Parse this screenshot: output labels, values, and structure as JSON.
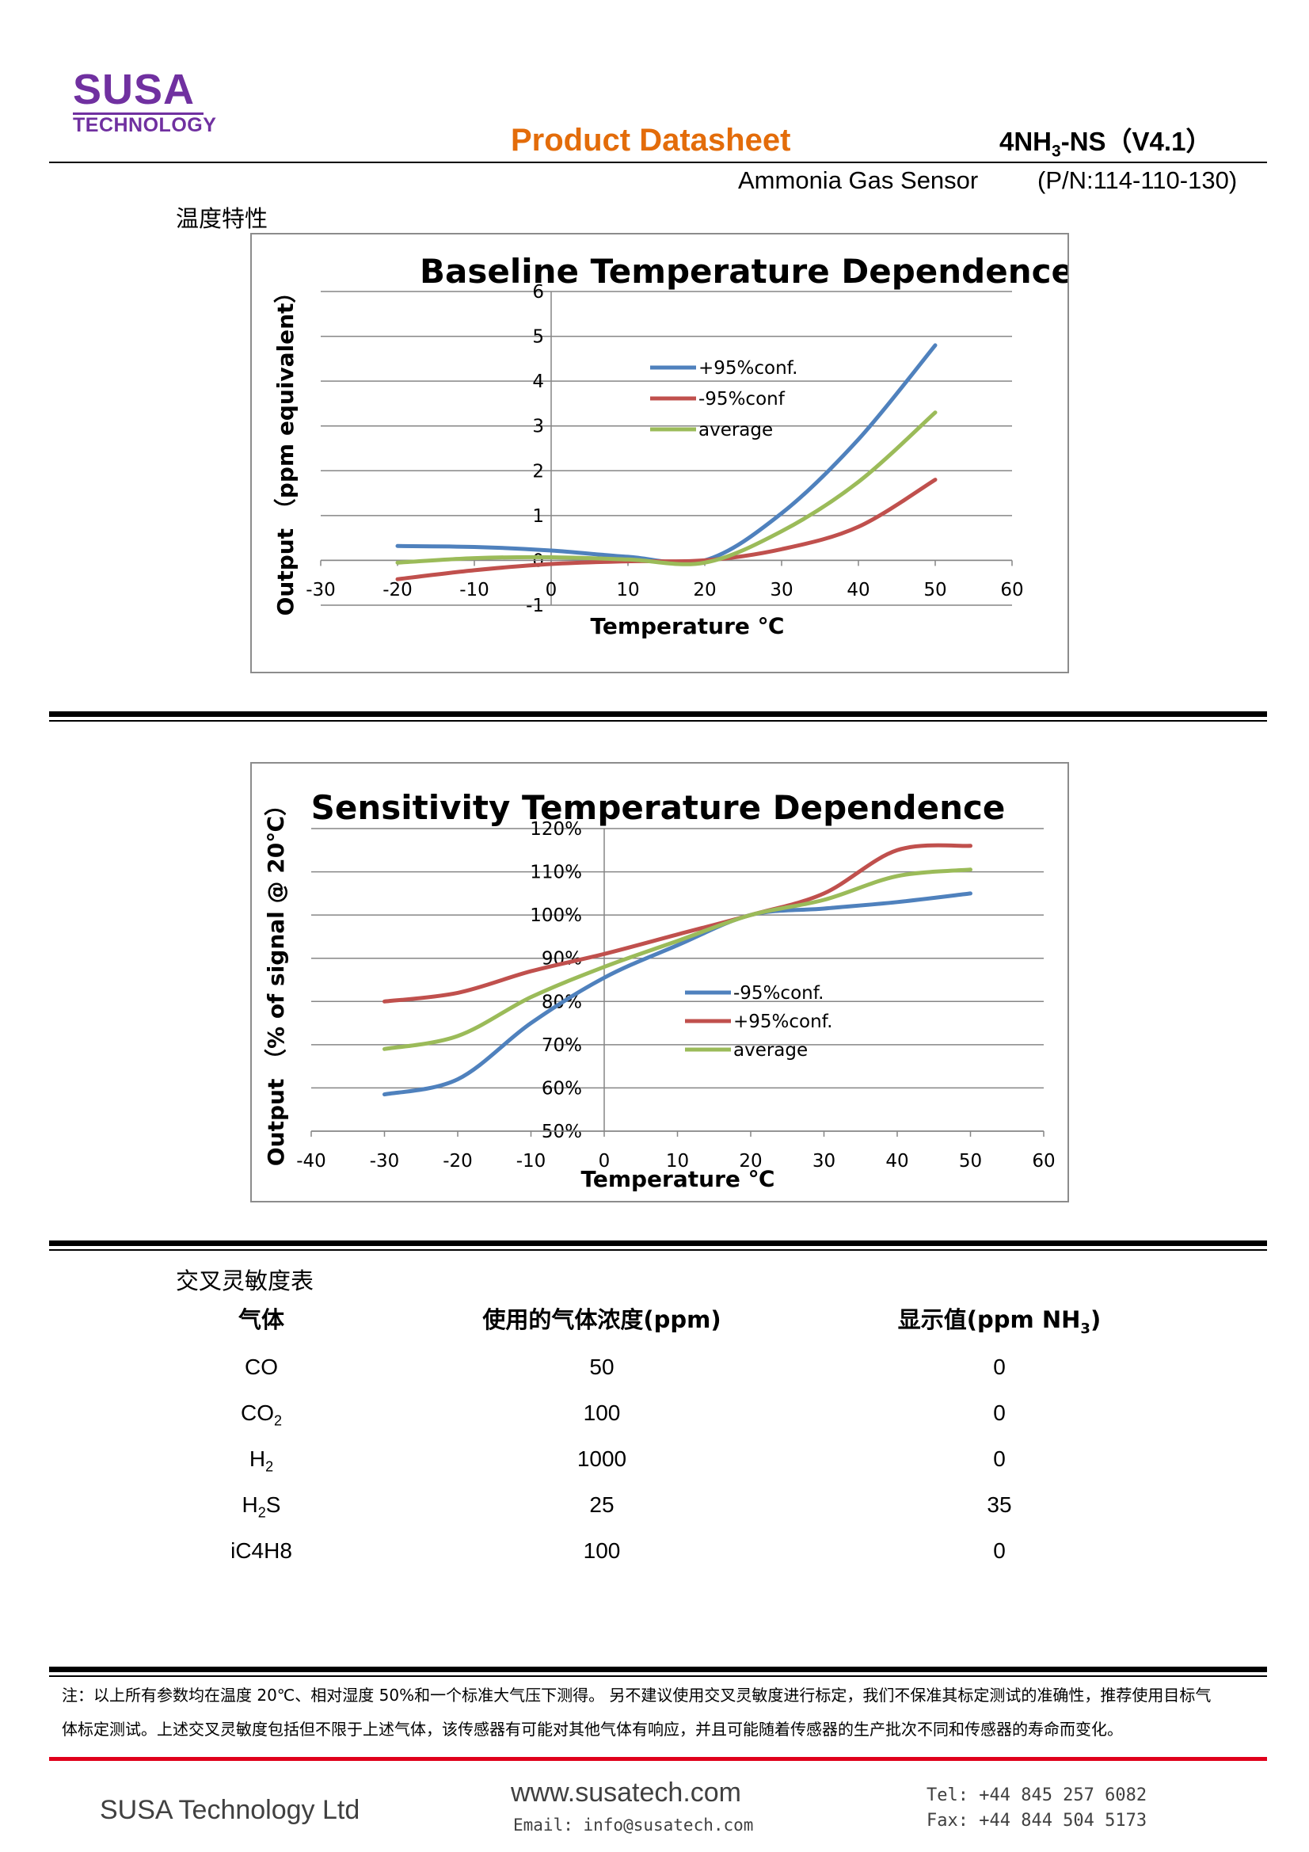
{
  "header": {
    "logo_main": "SUSA",
    "logo_sub": "TECHNOLOGY",
    "doc_title": "Product Datasheet",
    "part_name_pre": "4NH",
    "part_name_sub": "3",
    "part_name_post": "-NS（V4.1）",
    "sensor_type": "Ammonia Gas Sensor",
    "part_number": "(P/N:114-110-130)",
    "brand_color": "#7030a0",
    "title_color": "#e36c0a"
  },
  "temperature_section": {
    "heading": "温度特性"
  },
  "chart_data": [
    {
      "type": "line",
      "title": "Baseline Temperature Dependence",
      "xlabel": "Temperature ℃",
      "ylabel": "Output （ppm equivalent）",
      "xlim": [
        -30,
        60
      ],
      "ylim": [
        -1,
        6
      ],
      "xticks": [
        "-30",
        "-20",
        "-10",
        "0",
        "10",
        "20",
        "30",
        "40",
        "50",
        "60"
      ],
      "yticks": [
        "-1",
        "0",
        "1",
        "2",
        "3",
        "4",
        "5",
        "6"
      ],
      "grid": true,
      "legend": "center-right",
      "x": [
        -20,
        -10,
        0,
        10,
        20,
        30,
        40,
        50
      ],
      "series": [
        {
          "name": "+95%conf.",
          "color": "#4f81bd",
          "values": [
            0.32,
            0.3,
            0.22,
            0.08,
            0.0,
            1.05,
            2.7,
            4.8
          ]
        },
        {
          "name": "-95%conf",
          "color": "#c0504d",
          "values": [
            -0.42,
            -0.22,
            -0.08,
            -0.02,
            0.0,
            0.25,
            0.75,
            1.8
          ]
        },
        {
          "name": "average",
          "color": "#9bbb59",
          "values": [
            -0.05,
            0.05,
            0.07,
            0.02,
            -0.05,
            0.65,
            1.75,
            3.3
          ]
        }
      ]
    },
    {
      "type": "line",
      "title": "Sensitivity Temperature Dependence",
      "xlabel": "Temperature ℃",
      "ylabel": "Output （% of signal @ 20℃）",
      "xlim": [
        -40,
        60
      ],
      "ylim": [
        50,
        120
      ],
      "xticks": [
        "-40",
        "-30",
        "-20",
        "-10",
        "0",
        "10",
        "20",
        "30",
        "40",
        "50",
        "60"
      ],
      "yticks": [
        "50%",
        "60%",
        "70%",
        "80%",
        "90%",
        "100%",
        "110%",
        "120%"
      ],
      "grid": true,
      "legend": "center-right",
      "x": [
        -30,
        -20,
        -10,
        0,
        10,
        20,
        30,
        40,
        50
      ],
      "series": [
        {
          "name": "-95%conf.",
          "color": "#4f81bd",
          "values": [
            58.5,
            62,
            75,
            85.5,
            93,
            100,
            101.5,
            103,
            105
          ]
        },
        {
          "name": "+95%conf.",
          "color": "#c0504d",
          "values": [
            80,
            82,
            87,
            91,
            95.5,
            100,
            105,
            115,
            116
          ]
        },
        {
          "name": "average",
          "color": "#9bbb59",
          "values": [
            69,
            72,
            81,
            88,
            94,
            100,
            103.5,
            109,
            110.5
          ]
        }
      ]
    }
  ],
  "cross_sensitivity": {
    "heading": "交叉灵敏度表",
    "col_gas": "气体",
    "col_conc": "使用的气体浓度(ppm)",
    "col_reading_pre": "显示值(ppm NH",
    "col_reading_sub": "3",
    "col_reading_post": ")",
    "rows": [
      {
        "gas_pre": "CO",
        "gas_sub": "",
        "gas_post": "",
        "conc": "50",
        "reading": "0"
      },
      {
        "gas_pre": "CO",
        "gas_sub": "2",
        "gas_post": "",
        "conc": "100",
        "reading": "0"
      },
      {
        "gas_pre": "H",
        "gas_sub": "2",
        "gas_post": "",
        "conc": "1000",
        "reading": "0"
      },
      {
        "gas_pre": "H",
        "gas_sub": "2",
        "gas_post": "S",
        "conc": "25",
        "reading": "35"
      },
      {
        "gas_pre": "iC4H8",
        "gas_sub": "",
        "gas_post": "",
        "conc": "100",
        "reading": "0"
      }
    ]
  },
  "note": {
    "line1": "注：以上所有参数均在温度 20℃、相对湿度 50%和一个标准大气压下测得。 另不建议使用交叉灵敏度进行标定，我们不保准其标定测试的准确性，推荐使用目标气",
    "line2": "体标定测试。上述交叉灵敏度包括但不限于上述气体，该传感器有可能对其他气体有响应，并且可能随着传感器的生产批次不同和传感器的寿命而变化。"
  },
  "footer": {
    "company": "SUSA Technology Ltd",
    "website": "www.susatech.com",
    "email": "Email: info@susatech.com",
    "tel": "Tel: +44 845 257 6082",
    "fax": "Fax: +44 844 504 5173",
    "accent": "#e0001b"
  }
}
